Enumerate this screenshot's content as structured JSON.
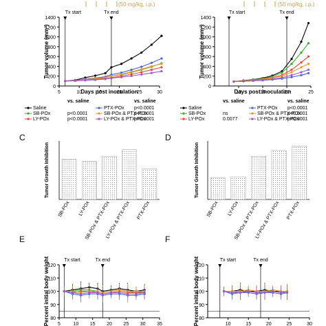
{
  "top_banner": {
    "dose_left": "(50 mg/kg, i.p.)",
    "dose_right": "(50 mg/kg, i.p.)"
  },
  "panels": {
    "C": "C",
    "D": "D",
    "E": "E",
    "F": "F"
  },
  "legend_common": {
    "vs_saline": "vs. saline"
  },
  "chart_data": [
    {
      "id": "A",
      "type": "line",
      "title": "",
      "xlabel": "Days post inoculation",
      "ylabel": "Tumor volume (mm³)",
      "xlim": [
        5,
        30
      ],
      "ylim": [
        0,
        1400
      ],
      "xticks": [
        "5",
        "10",
        "15",
        "20",
        "25",
        "30"
      ],
      "yticks": [
        "0",
        "200",
        "400",
        "600",
        "800",
        "1000",
        "1200",
        "1400"
      ],
      "annotations": [
        {
          "label": "Tx start",
          "x": 6.5
        },
        {
          "label": "Tx end",
          "x": 18
        }
      ],
      "x": [
        6.5,
        9,
        11.5,
        14,
        16.5,
        18,
        20.5,
        23,
        25.5,
        28,
        30.5
      ],
      "series": [
        {
          "name": "Saline",
          "p": "",
          "color": "#000000",
          "values": [
            100,
            120,
            170,
            210,
            260,
            380,
            450,
            560,
            680,
            840,
            1020
          ]
        },
        {
          "name": "SB-POx",
          "p": "p<0.0001",
          "color": "#3aa835",
          "values": [
            100,
            110,
            130,
            150,
            170,
            200,
            230,
            280,
            330,
            390,
            460
          ]
        },
        {
          "name": "LY-POx",
          "p": "p<0.0001",
          "color": "#e8483c",
          "values": [
            100,
            105,
            120,
            135,
            150,
            170,
            200,
            240,
            280,
            330,
            380
          ]
        },
        {
          "name": "PTX-POx",
          "p": "p<0.0001",
          "color": "#4a62d8",
          "values": [
            100,
            115,
            140,
            160,
            190,
            230,
            270,
            330,
            390,
            470,
            560
          ]
        },
        {
          "name": "SB-POx & PTX-POx",
          "p": "p<0.0001",
          "color": "#e39a2b",
          "values": [
            100,
            110,
            130,
            150,
            175,
            200,
            240,
            290,
            340,
            400,
            450
          ]
        },
        {
          "name": "LY-POx & PTX-POx",
          "p": "p<0.0001",
          "color": "#9b59c6",
          "values": [
            100,
            105,
            115,
            125,
            140,
            160,
            180,
            205,
            235,
            265,
            300
          ]
        }
      ]
    },
    {
      "id": "B",
      "type": "line",
      "title": "",
      "xlabel": "Days post inoculation",
      "ylabel": "Tumor volume (mm³)",
      "xlim": [
        5,
        25
      ],
      "ylim": [
        0,
        1400
      ],
      "xticks": [
        "10",
        "15",
        "20",
        "25"
      ],
      "yticks": [
        "0",
        "200",
        "400",
        "600",
        "800",
        "1000",
        "1200",
        "1400"
      ],
      "annotations": [
        {
          "label": "Tx start",
          "x": 8
        },
        {
          "label": "Tx end",
          "x": 20
        }
      ],
      "x": [
        9,
        11,
        13,
        15,
        17,
        19,
        21,
        23,
        24.5
      ],
      "series": [
        {
          "name": "Saline",
          "p": "",
          "color": "#000000",
          "values": [
            90,
            110,
            130,
            160,
            210,
            300,
            550,
            900,
            1280
          ]
        },
        {
          "name": "SB-POx",
          "p": "ns",
          "color": "#3aa835",
          "values": [
            90,
            105,
            125,
            150,
            190,
            270,
            450,
            680,
            870
          ]
        },
        {
          "name": "LY-POx",
          "p": "0.0077",
          "color": "#e8483c",
          "values": [
            90,
            100,
            115,
            140,
            170,
            220,
            330,
            480,
            600
          ]
        },
        {
          "name": "PTX-POx",
          "p": "p<0.0001",
          "color": "#4a62d8",
          "values": [
            90,
            95,
            105,
            115,
            130,
            150,
            180,
            220,
            260
          ]
        },
        {
          "name": "SB-POx & PTX-POx",
          "p": "p<0.0001",
          "color": "#e39a2b",
          "values": [
            90,
            100,
            115,
            130,
            160,
            200,
            280,
            380,
            450
          ]
        },
        {
          "name": "LY-POx & PTX-POx",
          "p": "p<0.0001",
          "color": "#9b59c6",
          "values": [
            90,
            95,
            105,
            120,
            140,
            170,
            220,
            280,
            330
          ]
        }
      ]
    },
    {
      "id": "C",
      "type": "bar",
      "title": "",
      "ylabel": "Tumor Growth Inhibition",
      "ylim": [
        0,
        80
      ],
      "categories": [
        "SB-POx",
        "LY-POx",
        "SB-POx & PTX-POx",
        "LY-POx & PTX-POx",
        "PTX-POx"
      ],
      "values": [
        55,
        52,
        59,
        68,
        42
      ]
    },
    {
      "id": "D",
      "type": "bar",
      "title": "",
      "ylabel": "Tumor Growth Inhibition",
      "ylim": [
        0,
        80
      ],
      "categories": [
        "SB-POx",
        "LY-POx",
        "SB-POx & PTX-POx",
        "LY-POx & PTX-POx",
        "PTX-POx"
      ],
      "values": [
        30,
        31,
        59,
        67,
        73
      ]
    },
    {
      "id": "E",
      "type": "line",
      "title": "",
      "ylabel": "Percent initial body weight",
      "xlim": [
        5,
        35
      ],
      "ylim": [
        80,
        120
      ],
      "xticks": [
        "5",
        "10",
        "15",
        "20",
        "25",
        "30",
        "35"
      ],
      "yticks": [
        "80",
        "90",
        "100",
        "110",
        "120"
      ],
      "annotations": [
        {
          "label": "Tx start",
          "x": 6.5
        },
        {
          "label": "Tx end",
          "x": 18
        }
      ],
      "x": [
        6.5,
        9,
        11.5,
        14,
        16.5,
        18,
        20.5,
        23,
        25.5,
        28,
        30.5
      ],
      "series": [
        {
          "name": "Saline",
          "color": "#000000",
          "values": [
            100,
            101,
            102,
            103,
            102,
            100,
            101,
            102,
            101,
            100,
            101
          ]
        },
        {
          "name": "SB-POx",
          "color": "#3aa835",
          "values": [
            100,
            100,
            101,
            101,
            100,
            99,
            100,
            101,
            100,
            99,
            100
          ]
        },
        {
          "name": "LY-POx",
          "color": "#e8483c",
          "values": [
            100,
            99,
            100,
            100,
            99,
            98,
            99,
            100,
            99,
            99,
            99
          ]
        },
        {
          "name": "PTX-POx",
          "color": "#4a62d8",
          "values": [
            100,
            98,
            97,
            98,
            98,
            97,
            98,
            98,
            97,
            97,
            98
          ]
        },
        {
          "name": "SB-POx & PTX-POx",
          "color": "#e39a2b",
          "values": [
            100,
            100,
            99,
            100,
            100,
            99,
            100,
            101,
            100,
            100,
            100
          ]
        },
        {
          "name": "LY-POx & PTX-POx",
          "color": "#9b59c6",
          "values": [
            100,
            99,
            98,
            99,
            99,
            98,
            99,
            99,
            98,
            98,
            99
          ]
        }
      ]
    },
    {
      "id": "F",
      "type": "line",
      "title": "",
      "ylabel": "Percent initial body weight",
      "xlim": [
        5,
        30
      ],
      "ylim": [
        80,
        120
      ],
      "xticks": [
        "10",
        "15",
        "20",
        "25",
        "30"
      ],
      "yticks": [
        "80",
        "90",
        "100",
        "110",
        "120"
      ],
      "annotations": [
        {
          "label": "Tx start",
          "x": 8
        },
        {
          "label": "Tx end",
          "x": 18
        }
      ],
      "x": [
        9,
        11,
        13,
        15,
        17,
        19,
        21,
        23,
        24.5
      ],
      "series": [
        {
          "name": "Saline",
          "color": "#000000",
          "values": [
            100,
            100,
            101,
            100,
            100,
            101,
            100,
            100,
            100
          ]
        },
        {
          "name": "SB-POx",
          "color": "#3aa835",
          "values": [
            100,
            99,
            100,
            100,
            99,
            100,
            100,
            99,
            100
          ]
        },
        {
          "name": "LY-POx",
          "color": "#e8483c",
          "values": [
            100,
            99,
            99,
            100,
            99,
            99,
            100,
            99,
            99
          ]
        },
        {
          "name": "PTX-POx",
          "color": "#4a62d8",
          "values": [
            100,
            98,
            99,
            99,
            98,
            99,
            99,
            98,
            99
          ]
        },
        {
          "name": "SB-POx & PTX-POx",
          "color": "#e39a2b",
          "values": [
            100,
            100,
            100,
            101,
            100,
            100,
            101,
            100,
            100
          ]
        },
        {
          "name": "LY-POx & PTX-POx",
          "color": "#9b59c6",
          "values": [
            100,
            99,
            99,
            100,
            99,
            99,
            100,
            99,
            99
          ]
        }
      ]
    }
  ]
}
